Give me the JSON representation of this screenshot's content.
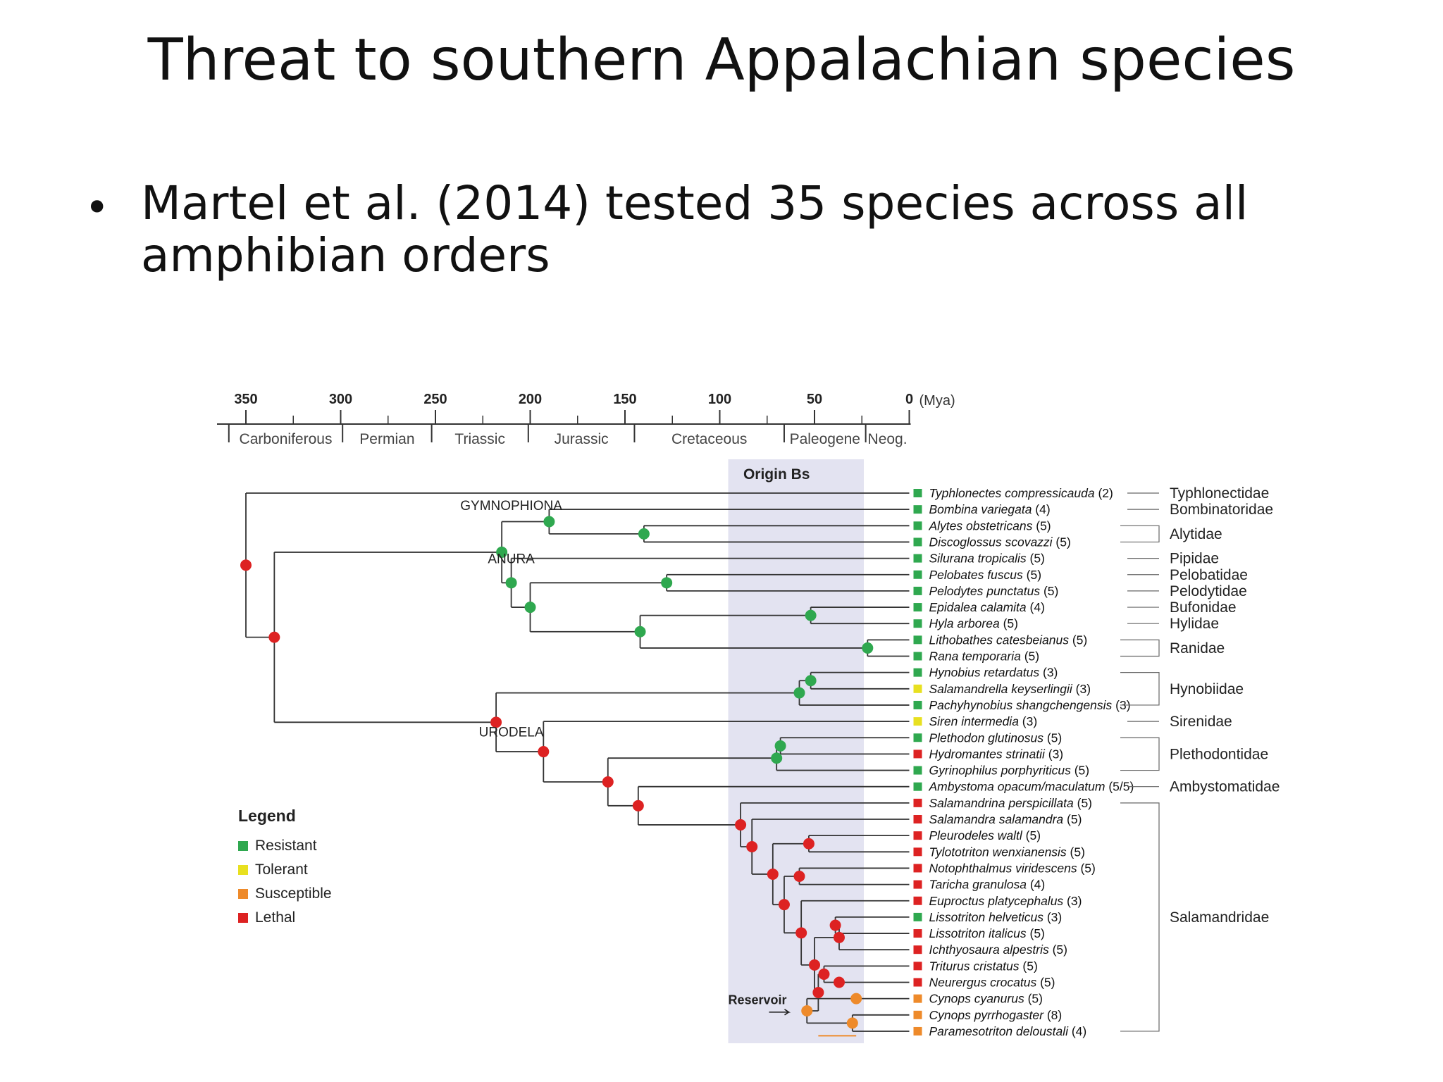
{
  "slide": {
    "title": "Threat to southern Appalachian species",
    "bullet": "Martel et al. (2014) tested 35 species across all amphibian orders"
  },
  "colors": {
    "resistant": "#2fa84f",
    "tolerant": "#e8e020",
    "susceptible": "#ee8a2a",
    "lethal": "#dd2222",
    "origin_band": "#e3e3f1",
    "reservoir_line": "#ee8a2a",
    "tree_line": "#333333"
  },
  "timescale": {
    "ticks": [
      "350",
      "300",
      "250",
      "200",
      "150",
      "100",
      "50",
      "0"
    ],
    "unit": "(Mya)",
    "periods": [
      "Carboniferous",
      "Permian",
      "Triassic",
      "Jurassic",
      "Cretaceous",
      "Paleogene",
      "Neog."
    ]
  },
  "origin_label": "Origin Bs",
  "orders": [
    "GYMNOPHIONA",
    "ANURA",
    "URODELA"
  ],
  "reservoir_label": "Reservoir",
  "legend": {
    "title": "Legend",
    "items": [
      {
        "label": "Resistant",
        "color": "#2fa84f"
      },
      {
        "label": "Tolerant",
        "color": "#e8e020"
      },
      {
        "label": "Susceptible",
        "color": "#ee8a2a"
      },
      {
        "label": "Lethal",
        "color": "#dd2222"
      }
    ]
  },
  "species": [
    {
      "name": "Typhlonectes compressicauda",
      "n": "(2)",
      "status": "resistant"
    },
    {
      "name": "Bombina variegata",
      "n": "(4)",
      "status": "resistant"
    },
    {
      "name": "Alytes obstetricans",
      "n": "(5)",
      "status": "resistant"
    },
    {
      "name": "Discoglossus scovazzi",
      "n": "(5)",
      "status": "resistant"
    },
    {
      "name": "Silurana tropicalis",
      "n": "(5)",
      "status": "resistant"
    },
    {
      "name": "Pelobates fuscus",
      "n": "(5)",
      "status": "resistant"
    },
    {
      "name": "Pelodytes punctatus",
      "n": "(5)",
      "status": "resistant"
    },
    {
      "name": "Epidalea calamita",
      "n": "(4)",
      "status": "resistant"
    },
    {
      "name": "Hyla arborea",
      "n": "(5)",
      "status": "resistant"
    },
    {
      "name": "Lithobathes catesbeianus",
      "n": "(5)",
      "status": "resistant"
    },
    {
      "name": "Rana temporaria",
      "n": "(5)",
      "status": "resistant"
    },
    {
      "name": "Hynobius retardatus",
      "n": "(3)",
      "status": "resistant"
    },
    {
      "name": "Salamandrella keyserlingii",
      "n": "(3)",
      "status": "tolerant"
    },
    {
      "name": "Pachyhynobius shangchengensis",
      "n": "(3)",
      "status": "resistant"
    },
    {
      "name": "Siren intermedia",
      "n": "(3)",
      "status": "tolerant"
    },
    {
      "name": "Plethodon glutinosus",
      "n": "(5)",
      "status": "resistant"
    },
    {
      "name": "Hydromantes strinatii",
      "n": "(3)",
      "status": "lethal"
    },
    {
      "name": "Gyrinophilus porphyriticus",
      "n": "(5)",
      "status": "resistant"
    },
    {
      "name": "Ambystoma  opacum/maculatum",
      "n": "(5/5)",
      "status": "resistant"
    },
    {
      "name": "Salamandrina perspicillata",
      "n": "(5)",
      "status": "lethal"
    },
    {
      "name": "Salamandra salamandra",
      "n": "(5)",
      "status": "lethal"
    },
    {
      "name": "Pleurodeles waltl",
      "n": "(5)",
      "status": "lethal"
    },
    {
      "name": "Tylototriton wenxianensis",
      "n": "(5)",
      "status": "lethal"
    },
    {
      "name": "Notophthalmus viridescens",
      "n": "(5)",
      "status": "lethal"
    },
    {
      "name": "Taricha granulosa",
      "n": "(4)",
      "status": "lethal"
    },
    {
      "name": "Euproctus platycephalus",
      "n": "(3)",
      "status": "lethal"
    },
    {
      "name": "Lissotriton helveticus",
      "n": "(3)",
      "status": "resistant"
    },
    {
      "name": "Lissotriton italicus",
      "n": "(5)",
      "status": "lethal"
    },
    {
      "name": "Ichthyosaura alpestris",
      "n": "(5)",
      "status": "lethal"
    },
    {
      "name": "Triturus cristatus",
      "n": "(5)",
      "status": "lethal"
    },
    {
      "name": "Neurergus crocatus",
      "n": "(5)",
      "status": "lethal"
    },
    {
      "name": "Cynops cyanurus",
      "n": "(5)",
      "status": "susceptible"
    },
    {
      "name": "Cynops pyrrhogaster",
      "n": "(8)",
      "status": "susceptible"
    },
    {
      "name": "Paramesotriton deloustali",
      "n": "(4)",
      "status": "susceptible"
    }
  ],
  "families": [
    {
      "name": "Typhlonectidae",
      "first": 0,
      "last": 0
    },
    {
      "name": "Bombinatoridae",
      "first": 1,
      "last": 1
    },
    {
      "name": "Alytidae",
      "first": 2,
      "last": 3
    },
    {
      "name": "Pipidae",
      "first": 4,
      "last": 4
    },
    {
      "name": "Pelobatidae",
      "first": 5,
      "last": 5
    },
    {
      "name": "Pelodytidae",
      "first": 6,
      "last": 6
    },
    {
      "name": "Bufonidae",
      "first": 7,
      "last": 7
    },
    {
      "name": "Hylidae",
      "first": 8,
      "last": 8
    },
    {
      "name": "Ranidae",
      "first": 9,
      "last": 10
    },
    {
      "name": "Hynobiidae",
      "first": 11,
      "last": 13
    },
    {
      "name": "Sirenidae",
      "first": 14,
      "last": 14
    },
    {
      "name": "Plethodontidae",
      "first": 15,
      "last": 17
    },
    {
      "name": "Ambystomatidae",
      "first": 18,
      "last": 18
    },
    {
      "name": "Salamandridae",
      "first": 19,
      "last": 33
    }
  ]
}
